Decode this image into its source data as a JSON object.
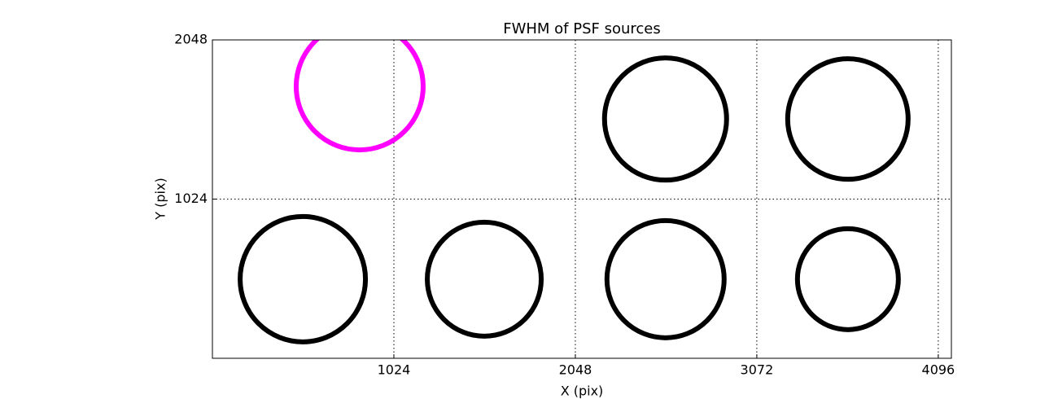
{
  "chart_data": {
    "type": "scatter",
    "title": "FWHM of PSF sources",
    "x_label": "X (pix)",
    "y_label": "Y (pix)",
    "x": [
      831,
      2557,
      3586,
      510,
      1534,
      2557,
      3586
    ],
    "y": [
      1749,
      1539,
      1539,
      509,
      509,
      509,
      509
    ],
    "sizes": [
      78,
      75,
      74,
      77,
      70,
      72,
      62
    ],
    "colors": [
      "#ff00ff",
      "#000000",
      "#000000",
      "#000000",
      "#000000",
      "#000000",
      "#000000"
    ],
    "xlim": [
      0,
      4170
    ],
    "ylim": [
      0,
      2048
    ],
    "xticks": [
      1024,
      2048,
      3072,
      4096
    ],
    "yticks": [
      1024,
      2048
    ],
    "grid": true
  }
}
